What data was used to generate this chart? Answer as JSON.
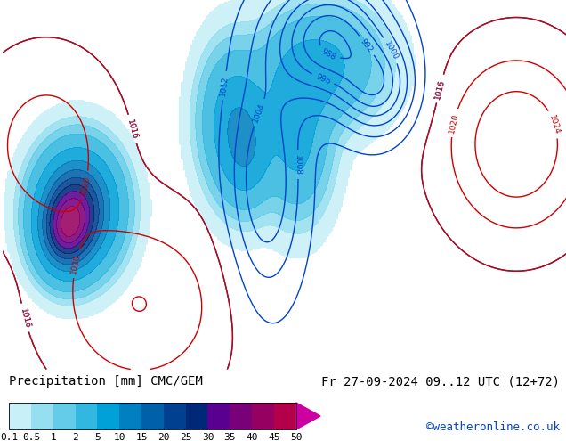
{
  "title_left": "Precipitation [mm] CMC/GEM",
  "title_right": "Fr 27-09-2024 09..12 UTC (12+72)",
  "credit": "©weatheronline.co.uk",
  "colorbar_levels": [
    0.1,
    0.5,
    1,
    2,
    5,
    10,
    15,
    20,
    25,
    30,
    35,
    40,
    45,
    50
  ],
  "colorbar_colors": [
    "#c8f0f8",
    "#96dff0",
    "#64cce8",
    "#32b8e0",
    "#00a0d8",
    "#0080c0",
    "#0060a8",
    "#004090",
    "#002878",
    "#5a0090",
    "#780078",
    "#960060",
    "#b40048",
    "#cc00a0"
  ],
  "ocean_color": "#d8e8f0",
  "land_color_europe": "#c8e090",
  "land_color_light": "#d8e8a8",
  "sea_bg": "#e0ecf4",
  "border_color": "#888888",
  "pressure_red_color": "#cc0000",
  "pressure_blue_color": "#0044cc",
  "font_size_title": 10,
  "font_size_credit": 9,
  "font_size_label": 8,
  "lon_min": -42,
  "lon_max": 48,
  "lat_min": 27,
  "lat_max": 73
}
